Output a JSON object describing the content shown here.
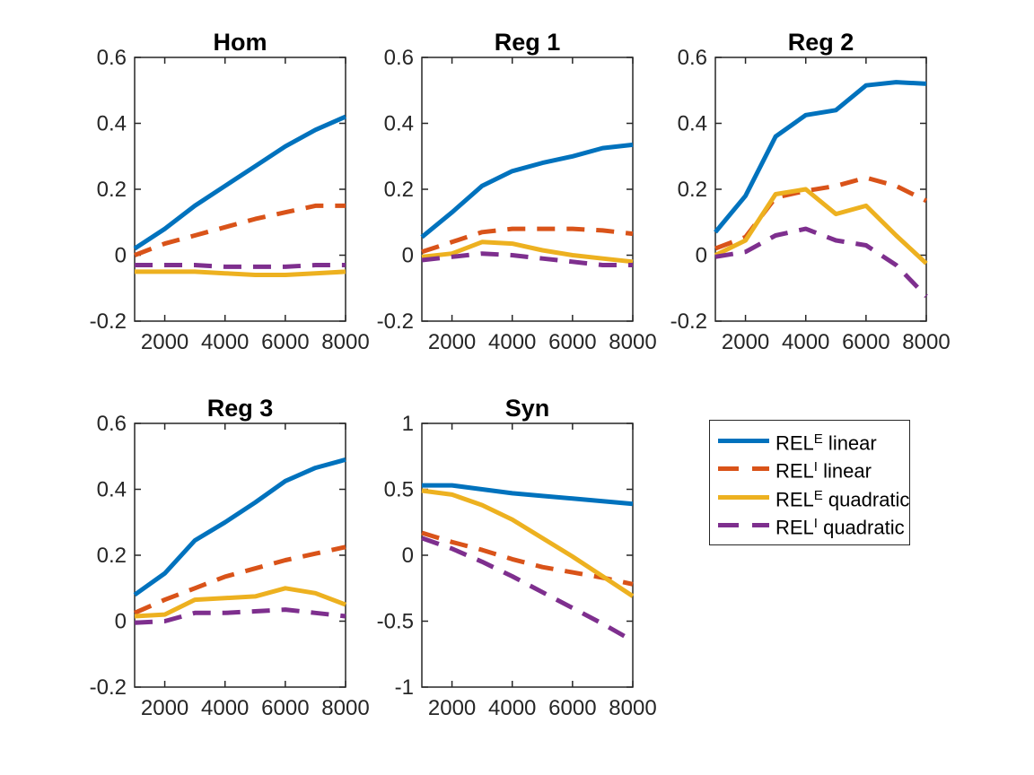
{
  "figure": {
    "background": "#ffffff",
    "axis_color": "#262626",
    "title_color": "#000000"
  },
  "series_meta": [
    {
      "name": "REL^E linear",
      "color": "#0072BD",
      "dash": false
    },
    {
      "name": "REL^I linear",
      "color": "#D95319",
      "dash": true
    },
    {
      "name": "REL^E quadratic",
      "color": "#EDB120",
      "dash": false
    },
    {
      "name": "REL^I quadratic",
      "color": "#7E2F8E",
      "dash": true
    }
  ],
  "legend": {
    "position": "bottom-right-of-figure",
    "items": [
      {
        "base": "REL",
        "sup": "E",
        "rest": " linear",
        "series": "REL^E linear"
      },
      {
        "base": "REL",
        "sup": "I",
        "rest": " linear",
        "series": "REL^I linear"
      },
      {
        "base": "REL",
        "sup": "E",
        "rest": " quadratic",
        "series": "REL^E quadratic"
      },
      {
        "base": "REL",
        "sup": "I",
        "rest": " quadratic",
        "series": "REL^I quadratic"
      }
    ]
  },
  "chart_data": [
    {
      "type": "line",
      "title": "Hom",
      "x": [
        1000,
        2000,
        3000,
        4000,
        5000,
        6000,
        7000,
        8000
      ],
      "xlim": [
        1000,
        8000
      ],
      "ylim": [
        -0.2,
        0.6
      ],
      "xticks": [
        2000,
        4000,
        6000,
        8000
      ],
      "xtick_labels": [
        "2000",
        "4000",
        "6000",
        "8000"
      ],
      "yticks": [
        -0.2,
        0,
        0.2,
        0.4,
        0.6
      ],
      "ytick_labels": [
        "-0.2",
        "0",
        "0.2",
        "0.4",
        "0.6"
      ],
      "grid": false,
      "series": [
        {
          "meta": 0,
          "name": "REL^E linear",
          "values": [
            0.02,
            0.08,
            0.15,
            0.21,
            0.27,
            0.33,
            0.38,
            0.42
          ]
        },
        {
          "meta": 1,
          "name": "REL^I linear",
          "values": [
            0.0,
            0.035,
            0.06,
            0.085,
            0.11,
            0.13,
            0.15,
            0.15
          ]
        },
        {
          "meta": 2,
          "name": "REL^E quadratic",
          "values": [
            -0.05,
            -0.05,
            -0.05,
            -0.055,
            -0.06,
            -0.06,
            -0.055,
            -0.05
          ]
        },
        {
          "meta": 3,
          "name": "REL^I quadratic",
          "values": [
            -0.03,
            -0.03,
            -0.03,
            -0.035,
            -0.035,
            -0.035,
            -0.03,
            -0.03
          ]
        }
      ]
    },
    {
      "type": "line",
      "title": "Reg 1",
      "x": [
        1000,
        2000,
        3000,
        4000,
        5000,
        6000,
        7000,
        8000
      ],
      "xlim": [
        1000,
        8000
      ],
      "ylim": [
        -0.2,
        0.6
      ],
      "xticks": [
        2000,
        4000,
        6000,
        8000
      ],
      "xtick_labels": [
        "2000",
        "4000",
        "6000",
        "8000"
      ],
      "yticks": [
        -0.2,
        0,
        0.2,
        0.4,
        0.6
      ],
      "ytick_labels": [
        "-0.2",
        "0",
        "0.2",
        "0.4",
        "0.6"
      ],
      "grid": false,
      "series": [
        {
          "meta": 0,
          "name": "REL^E linear",
          "values": [
            0.055,
            0.13,
            0.21,
            0.255,
            0.28,
            0.3,
            0.325,
            0.335
          ]
        },
        {
          "meta": 1,
          "name": "REL^I linear",
          "values": [
            0.01,
            0.04,
            0.07,
            0.08,
            0.08,
            0.08,
            0.075,
            0.065
          ]
        },
        {
          "meta": 2,
          "name": "REL^E quadratic",
          "values": [
            -0.005,
            0.005,
            0.04,
            0.035,
            0.015,
            0.0,
            -0.01,
            -0.02
          ]
        },
        {
          "meta": 3,
          "name": "REL^I quadratic",
          "values": [
            -0.015,
            -0.005,
            0.005,
            0.0,
            -0.01,
            -0.02,
            -0.03,
            -0.03
          ]
        }
      ]
    },
    {
      "type": "line",
      "title": "Reg 2",
      "x": [
        1000,
        2000,
        3000,
        4000,
        5000,
        6000,
        7000,
        8000
      ],
      "xlim": [
        1000,
        8000
      ],
      "ylim": [
        -0.2,
        0.6
      ],
      "xticks": [
        2000,
        4000,
        6000,
        8000
      ],
      "xtick_labels": [
        "2000",
        "4000",
        "6000",
        "8000"
      ],
      "yticks": [
        -0.2,
        0,
        0.2,
        0.4,
        0.6
      ],
      "ytick_labels": [
        "-0.2",
        "0",
        "0.2",
        "0.4",
        "0.6"
      ],
      "grid": false,
      "series": [
        {
          "meta": 0,
          "name": "REL^E linear",
          "values": [
            0.07,
            0.18,
            0.36,
            0.425,
            0.44,
            0.515,
            0.525,
            0.52
          ]
        },
        {
          "meta": 1,
          "name": "REL^I linear",
          "values": [
            0.02,
            0.055,
            0.175,
            0.195,
            0.21,
            0.235,
            0.21,
            0.165
          ]
        },
        {
          "meta": 2,
          "name": "REL^E quadratic",
          "values": [
            0.0,
            0.045,
            0.185,
            0.2,
            0.125,
            0.15,
            0.06,
            -0.025
          ]
        },
        {
          "meta": 3,
          "name": "REL^I quadratic",
          "values": [
            -0.005,
            0.01,
            0.06,
            0.08,
            0.045,
            0.03,
            -0.03,
            -0.125
          ]
        }
      ]
    },
    {
      "type": "line",
      "title": "Reg 3",
      "x": [
        1000,
        2000,
        3000,
        4000,
        5000,
        6000,
        7000,
        8000
      ],
      "xlim": [
        1000,
        8000
      ],
      "ylim": [
        -0.2,
        0.6
      ],
      "xticks": [
        2000,
        4000,
        6000,
        8000
      ],
      "xtick_labels": [
        "2000",
        "4000",
        "6000",
        "8000"
      ],
      "yticks": [
        -0.2,
        0,
        0.2,
        0.4,
        0.6
      ],
      "ytick_labels": [
        "-0.2",
        "0",
        "0.2",
        "0.4",
        "0.6"
      ],
      "grid": false,
      "series": [
        {
          "meta": 0,
          "name": "REL^E linear",
          "values": [
            0.08,
            0.145,
            0.245,
            0.3,
            0.36,
            0.425,
            0.465,
            0.49
          ]
        },
        {
          "meta": 1,
          "name": "REL^I linear",
          "values": [
            0.025,
            0.065,
            0.1,
            0.135,
            0.16,
            0.185,
            0.205,
            0.225
          ]
        },
        {
          "meta": 2,
          "name": "REL^E quadratic",
          "values": [
            0.015,
            0.02,
            0.065,
            0.07,
            0.075,
            0.1,
            0.085,
            0.05
          ]
        },
        {
          "meta": 3,
          "name": "REL^I quadratic",
          "values": [
            -0.005,
            0.0,
            0.025,
            0.025,
            0.03,
            0.035,
            0.025,
            0.015
          ]
        }
      ]
    },
    {
      "type": "line",
      "title": "Syn",
      "x": [
        1000,
        2000,
        3000,
        4000,
        5000,
        6000,
        7000,
        8000
      ],
      "xlim": [
        1000,
        8000
      ],
      "ylim": [
        -1,
        1
      ],
      "xticks": [
        2000,
        4000,
        6000,
        8000
      ],
      "xtick_labels": [
        "2000",
        "4000",
        "6000",
        "8000"
      ],
      "yticks": [
        -1,
        -0.5,
        0,
        0.5,
        1
      ],
      "ytick_labels": [
        "-1",
        "-0.5",
        "0",
        "0.5",
        "1"
      ],
      "grid": false,
      "series": [
        {
          "meta": 0,
          "name": "REL^E linear",
          "values": [
            0.53,
            0.53,
            0.5,
            0.47,
            0.45,
            0.43,
            0.41,
            0.39
          ]
        },
        {
          "meta": 1,
          "name": "REL^I linear",
          "values": [
            0.17,
            0.1,
            0.04,
            -0.03,
            -0.09,
            -0.13,
            -0.17,
            -0.22
          ]
        },
        {
          "meta": 2,
          "name": "REL^E quadratic",
          "values": [
            0.49,
            0.46,
            0.38,
            0.27,
            0.13,
            -0.01,
            -0.16,
            -0.31
          ]
        },
        {
          "meta": 3,
          "name": "REL^I quadratic",
          "values": [
            0.13,
            0.05,
            -0.05,
            -0.16,
            -0.28,
            -0.4,
            -0.52,
            -0.65
          ]
        }
      ]
    }
  ]
}
